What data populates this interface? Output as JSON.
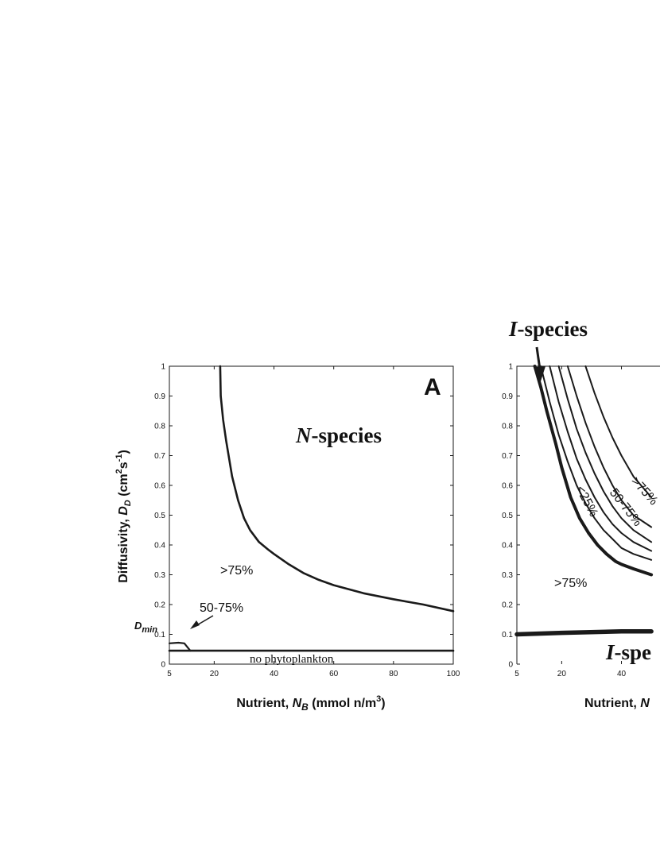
{
  "colors": {
    "ink": "#1a1a1a",
    "background": "#ffffff"
  },
  "chart_data": [
    {
      "type": "line",
      "panel_label": "A",
      "title": "",
      "xlabel": "Nutrient, N_B (mmol n/m^3)",
      "ylabel": "Diffusivity, D_D (cm^2 s^-1)",
      "xlim": [
        5,
        100
      ],
      "ylim": [
        0,
        1
      ],
      "xticks": [
        5,
        20,
        40,
        60,
        80,
        100
      ],
      "yticks": [
        0,
        0.1,
        0.2,
        0.3,
        0.4,
        0.5,
        0.6,
        0.7,
        0.8,
        0.9,
        1
      ],
      "grid": false,
      "species_label": "N-species",
      "region_labels": [
        ">75%",
        "50-75%",
        "no phytoplankton"
      ],
      "dmin_label": "D_min",
      "dmin_value": 0.045,
      "series": [
        {
          "x": [
            22,
            22.2,
            23,
            24,
            26,
            28,
            30,
            32,
            35,
            38,
            40,
            45,
            50,
            55,
            60,
            70,
            80,
            90,
            100
          ],
          "y": [
            1.0,
            0.9,
            0.82,
            0.75,
            0.63,
            0.55,
            0.49,
            0.45,
            0.41,
            0.385,
            0.37,
            0.335,
            0.305,
            0.283,
            0.265,
            0.238,
            0.218,
            0.2,
            0.178
          ]
        },
        {
          "x": [
            5,
            100
          ],
          "y": [
            0.045,
            0.045
          ]
        },
        {
          "x": [
            5,
            8,
            10,
            12
          ],
          "y": [
            0.07,
            0.072,
            0.07,
            0.045
          ]
        }
      ]
    },
    {
      "type": "line",
      "panel_label": "",
      "title": "",
      "xlabel": "Nutrient, N",
      "ylabel": "",
      "xlim": [
        5,
        100
      ],
      "ylim": [
        0,
        1
      ],
      "xticks": [
        5,
        20,
        40
      ],
      "yticks": [
        0,
        0.1,
        0.2,
        0.3,
        0.4,
        0.5,
        0.6,
        0.7,
        0.8,
        0.9,
        1
      ],
      "grid": false,
      "species_label_top": "I-species",
      "species_label_bottom": "I-spe",
      "region_labels": [
        ">75%",
        "<25%",
        "50-75%",
        ">75%"
      ],
      "series": [
        {
          "x": [
            11,
            13,
            15,
            18,
            20,
            23,
            26,
            29,
            32,
            35,
            38,
            40,
            44,
            50
          ],
          "y": [
            1.0,
            0.93,
            0.85,
            0.74,
            0.66,
            0.56,
            0.49,
            0.44,
            0.4,
            0.37,
            0.345,
            0.335,
            0.32,
            0.3
          ]
        },
        {
          "x": [
            13,
            16,
            19,
            22,
            25,
            28,
            31,
            34,
            37,
            40,
            44,
            50
          ],
          "y": [
            1.0,
            0.88,
            0.77,
            0.68,
            0.6,
            0.54,
            0.49,
            0.45,
            0.42,
            0.39,
            0.37,
            0.35
          ]
        },
        {
          "x": [
            16,
            19,
            22,
            25,
            28,
            31,
            34,
            37,
            40,
            44,
            50
          ],
          "y": [
            1.0,
            0.88,
            0.78,
            0.69,
            0.62,
            0.56,
            0.51,
            0.47,
            0.44,
            0.41,
            0.38
          ]
        },
        {
          "x": [
            19,
            22,
            25,
            28,
            31,
            34,
            37,
            40,
            44,
            50
          ],
          "y": [
            1.0,
            0.89,
            0.79,
            0.71,
            0.64,
            0.58,
            0.53,
            0.49,
            0.45,
            0.41
          ]
        },
        {
          "x": [
            22,
            25,
            28,
            31,
            34,
            37,
            40,
            44,
            50
          ],
          "y": [
            1.0,
            0.9,
            0.81,
            0.73,
            0.66,
            0.6,
            0.55,
            0.5,
            0.46
          ]
        },
        {
          "x": [
            28,
            31,
            34,
            37,
            40,
            44,
            50
          ],
          "y": [
            1.0,
            0.91,
            0.83,
            0.76,
            0.7,
            0.63,
            0.56
          ]
        },
        {
          "x": [
            5,
            20,
            40,
            50
          ],
          "y": [
            0.1,
            0.105,
            0.11,
            0.11
          ]
        }
      ]
    }
  ]
}
